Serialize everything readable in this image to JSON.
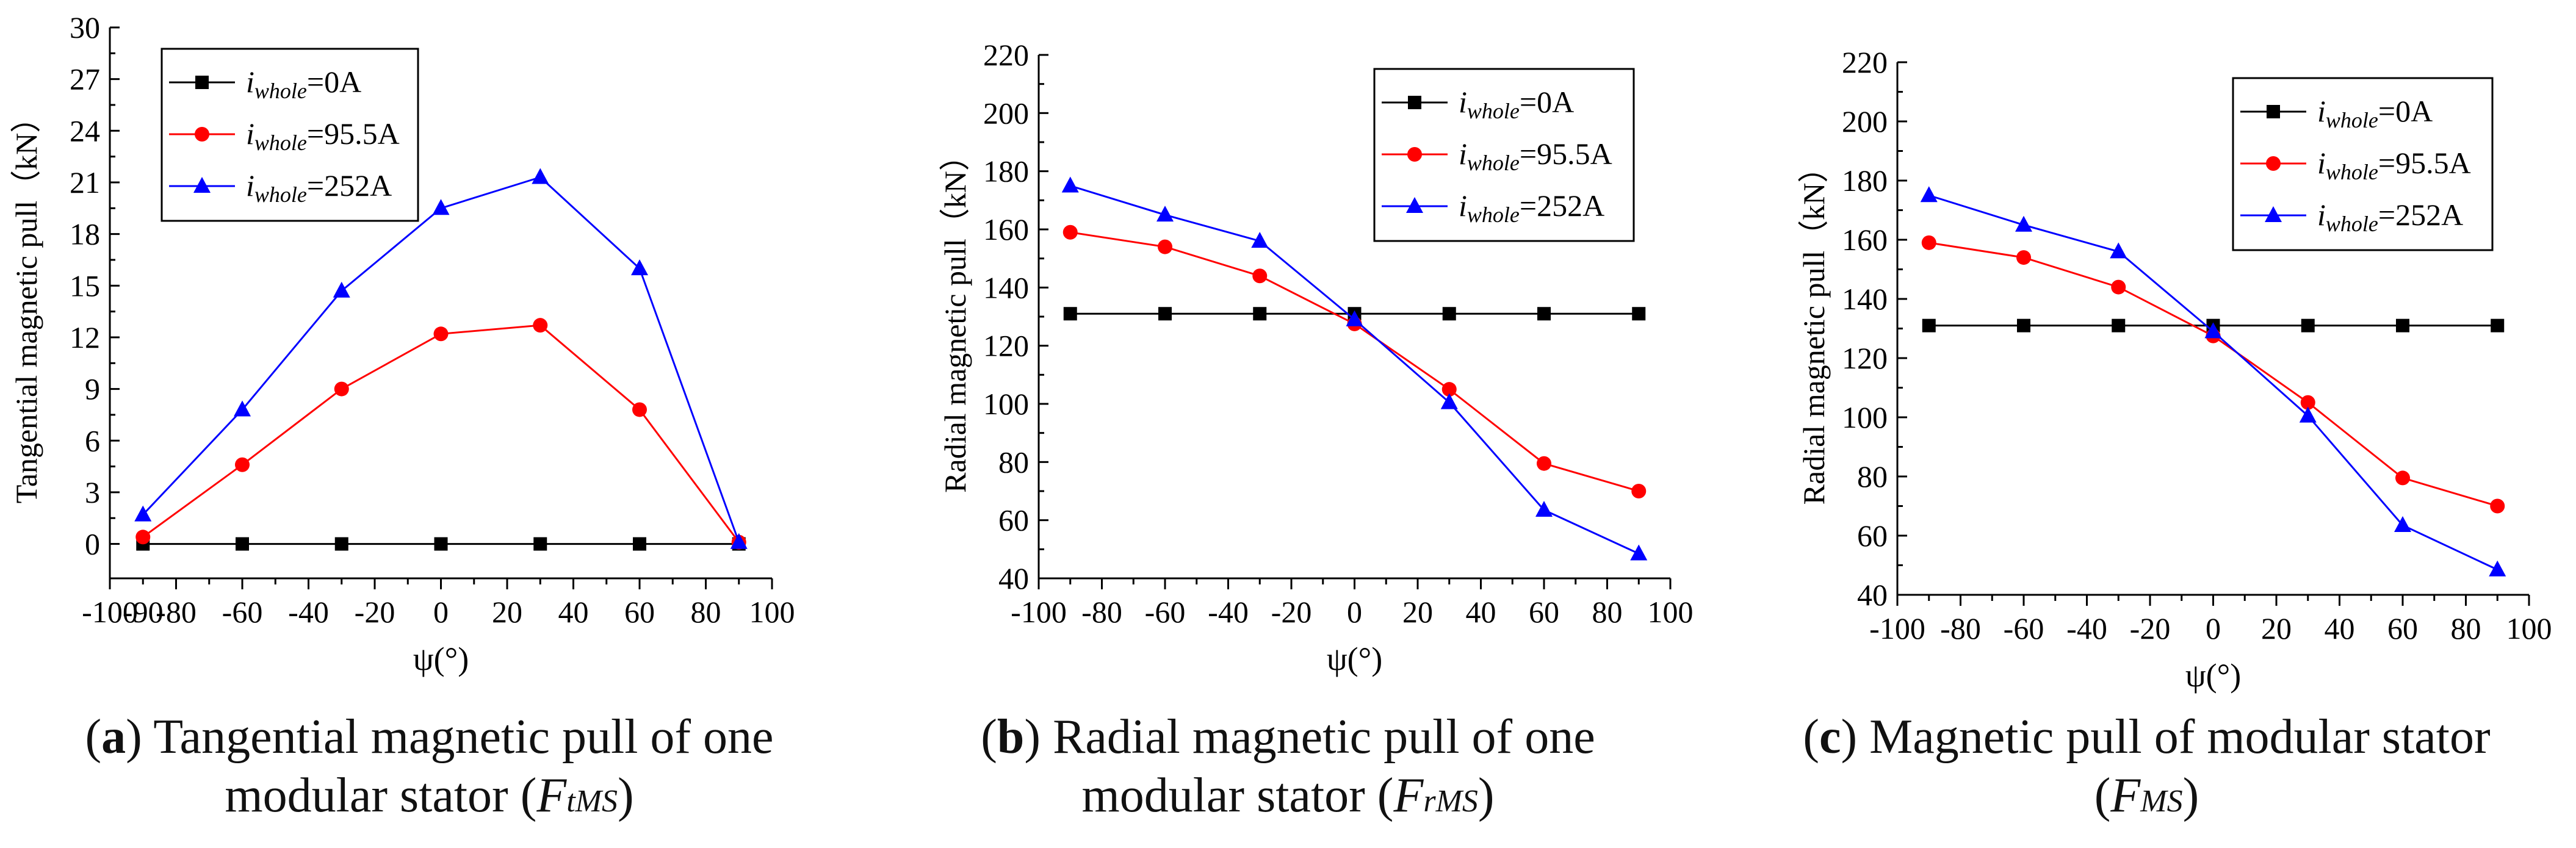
{
  "chart_data": [
    {
      "type": "line",
      "id": "a",
      "xlabel": "ψ(°)",
      "ylabel": "Tangential magnetic pull（kN）",
      "xlim": [
        -100,
        100
      ],
      "ylim": [
        -2,
        30
      ],
      "xticks": [
        -100,
        -90,
        -80,
        -60,
        -40,
        -20,
        0,
        20,
        40,
        60,
        80,
        100
      ],
      "yticks": [
        0,
        3,
        6,
        9,
        12,
        15,
        18,
        21,
        24,
        27,
        30
      ],
      "x": [
        -90,
        -60,
        -30,
        0,
        30,
        60,
        90
      ],
      "series": [
        {
          "name_prefix": "i",
          "name_sub": "whole",
          "name_suffix": "=0A",
          "color": "#000000",
          "marker": "square",
          "values": [
            0,
            0,
            0,
            0,
            0,
            0,
            0
          ]
        },
        {
          "name_prefix": "i",
          "name_sub": "whole",
          "name_suffix": "=95.5A",
          "color": "#ff0000",
          "marker": "circle",
          "values": [
            0.4,
            4.6,
            9.0,
            12.2,
            12.7,
            7.8,
            0.1
          ]
        },
        {
          "name_prefix": "i",
          "name_sub": "whole",
          "name_suffix": "=252A",
          "color": "#0000ff",
          "marker": "triangle",
          "values": [
            1.7,
            7.8,
            14.7,
            19.5,
            21.3,
            16.0,
            0.1
          ]
        }
      ],
      "caption": {
        "label": "a",
        "text_line1": " Tangential magnetic pull of one",
        "text_line2_pre": "modular stator (",
        "sym": "F",
        "sym_sub": "tMS",
        "text_line2_post": ")"
      }
    },
    {
      "type": "line",
      "id": "b",
      "xlabel": "ψ(°)",
      "ylabel": "Radial magnetic pull（kN）",
      "xlim": [
        -100,
        100
      ],
      "ylim": [
        40,
        220
      ],
      "xticks": [
        -100,
        -80,
        -60,
        -40,
        -20,
        0,
        20,
        40,
        60,
        80,
        100
      ],
      "yticks": [
        40,
        60,
        80,
        100,
        120,
        140,
        160,
        180,
        200,
        220
      ],
      "x": [
        -90,
        -60,
        -30,
        0,
        30,
        60,
        90
      ],
      "series": [
        {
          "name_prefix": "i",
          "name_sub": "whole",
          "name_suffix": "=0A",
          "color": "#000000",
          "marker": "square",
          "values": [
            131,
            131,
            131,
            131,
            131,
            131,
            131
          ]
        },
        {
          "name_prefix": "i",
          "name_sub": "whole",
          "name_suffix": "=95.5A",
          "color": "#ff0000",
          "marker": "circle",
          "values": [
            159,
            154,
            144,
            127.5,
            105,
            79.5,
            70
          ]
        },
        {
          "name_prefix": "i",
          "name_sub": "whole",
          "name_suffix": "=252A",
          "color": "#0000ff",
          "marker": "triangle",
          "values": [
            175,
            165,
            156,
            129,
            100.5,
            63.5,
            48.5
          ]
        }
      ],
      "caption": {
        "label": "b",
        "text_line1": " Radial magnetic pull of one",
        "text_line2_pre": "modular stator (",
        "sym": "F",
        "sym_sub": "rMS",
        "text_line2_post": ")"
      }
    },
    {
      "type": "line",
      "id": "c",
      "xlabel": "ψ(°)",
      "ylabel": "Radial magnetic pull（kN）",
      "xlim": [
        -100,
        100
      ],
      "ylim": [
        40,
        220
      ],
      "xticks": [
        -100,
        -80,
        -60,
        -40,
        -20,
        0,
        20,
        40,
        60,
        80,
        100
      ],
      "yticks": [
        40,
        60,
        80,
        100,
        120,
        140,
        160,
        180,
        200,
        220
      ],
      "x": [
        -90,
        -60,
        -30,
        0,
        30,
        60,
        90
      ],
      "series": [
        {
          "name_prefix": "i",
          "name_sub": "whole",
          "name_suffix": "=0A",
          "color": "#000000",
          "marker": "square",
          "values": [
            131,
            131,
            131,
            131,
            131,
            131,
            131
          ]
        },
        {
          "name_prefix": "i",
          "name_sub": "whole",
          "name_suffix": "=95.5A",
          "color": "#ff0000",
          "marker": "circle",
          "values": [
            159,
            154,
            144,
            127.5,
            105,
            79.5,
            70
          ]
        },
        {
          "name_prefix": "i",
          "name_sub": "whole",
          "name_suffix": "=252A",
          "color": "#0000ff",
          "marker": "triangle",
          "values": [
            175,
            165,
            156,
            129,
            100.5,
            63.5,
            48.5
          ]
        }
      ],
      "caption": {
        "label": "c",
        "text_line1": " Magnetic pull of modular stator",
        "text_line2_pre": "(",
        "sym": "F",
        "sym_sub": "MS",
        "text_line2_post": ")"
      }
    }
  ]
}
